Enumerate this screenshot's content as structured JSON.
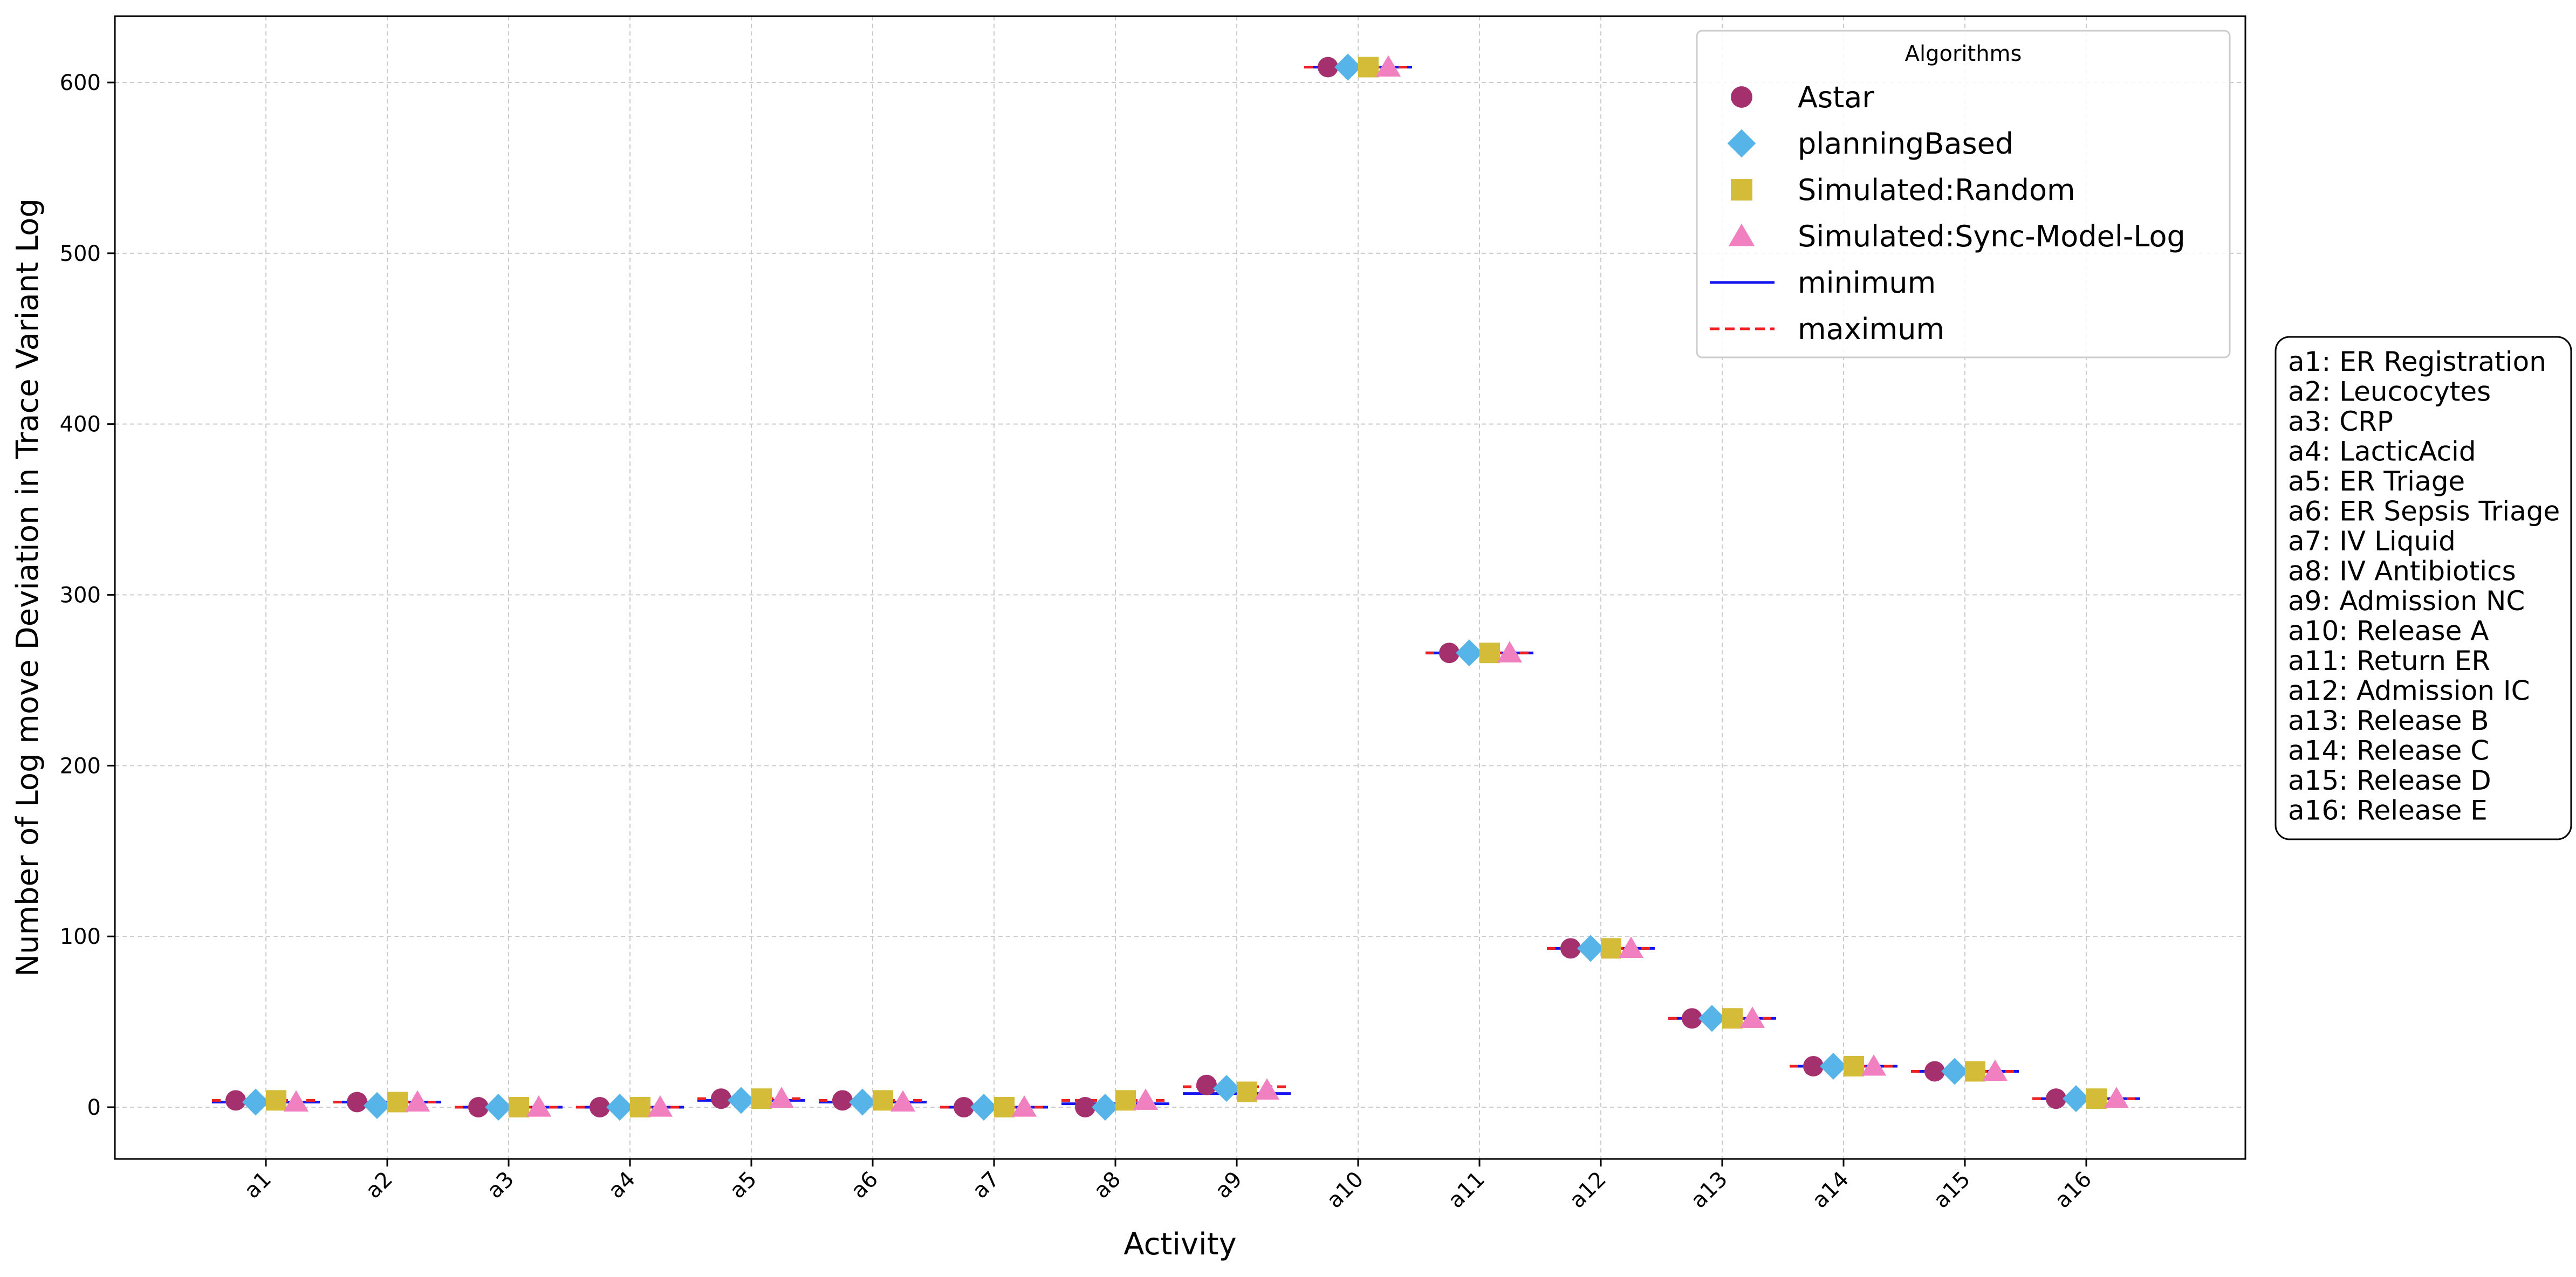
{
  "chart_data": {
    "type": "scatter",
    "xlabel": "Activity",
    "ylabel": "Number of Log move Deviation  in Trace Variant Log",
    "ylim": [
      -30,
      640
    ],
    "yticks": [
      0,
      100,
      200,
      300,
      400,
      500,
      600
    ],
    "grid": true,
    "categories": [
      "a1",
      "a2",
      "a3",
      "a4",
      "a5",
      "a6",
      "a7",
      "a8",
      "a9",
      "a10",
      "a11",
      "a12",
      "a13",
      "a14",
      "a15",
      "a16"
    ],
    "series": [
      {
        "name": "Astar",
        "marker": "circle",
        "color": "#A5306E",
        "values": [
          4,
          3,
          0,
          0,
          5,
          4,
          0,
          0,
          13,
          609,
          266,
          93,
          52,
          24,
          21,
          5
        ]
      },
      {
        "name": "planningBased",
        "marker": "diamond",
        "color": "#56B4E9",
        "values": [
          3,
          1,
          0,
          0,
          4,
          3,
          0,
          0,
          11,
          609,
          266,
          93,
          52,
          24,
          21,
          5
        ]
      },
      {
        "name": "Simulated:Random",
        "marker": "square",
        "color": "#D4BC38",
        "values": [
          4,
          3,
          0,
          0,
          5,
          4,
          0,
          4,
          9,
          609,
          266,
          93,
          52,
          24,
          21,
          5
        ]
      },
      {
        "name": "Simulated:Sync-Model-Log",
        "marker": "triangle",
        "color": "#F080C0",
        "values": [
          3,
          3,
          0,
          0,
          5,
          3,
          0,
          4,
          10,
          609,
          266,
          93,
          52,
          24,
          21,
          5
        ]
      }
    ],
    "range_lines": [
      {
        "name": "minimum",
        "color": "#1515EE",
        "style": "solid",
        "values": [
          3,
          3,
          0,
          0,
          4,
          3,
          0,
          2,
          8,
          609,
          266,
          93,
          52,
          24,
          21,
          5
        ]
      },
      {
        "name": "maximum",
        "color": "#EE2020",
        "style": "dashed",
        "values": [
          4,
          3,
          0,
          0,
          5,
          4,
          0,
          4,
          12,
          609,
          266,
          93,
          52,
          24,
          21,
          5
        ]
      }
    ],
    "legend": {
      "title": "Algorithms",
      "placement": "top-right"
    },
    "activity_mapping": [
      "a1: ER Registration",
      "a2: Leucocytes",
      "a3: CRP",
      "a4: LacticAcid",
      "a5: ER Triage",
      "a6: ER Sepsis Triage",
      "a7: IV Liquid",
      "a8: IV Antibiotics",
      "a9: Admission NC",
      "a10: Release A",
      "a11: Return ER",
      "a12: Admission IC",
      "a13: Release B",
      "a14: Release C",
      "a15: Release D",
      "a16: Release E"
    ]
  }
}
